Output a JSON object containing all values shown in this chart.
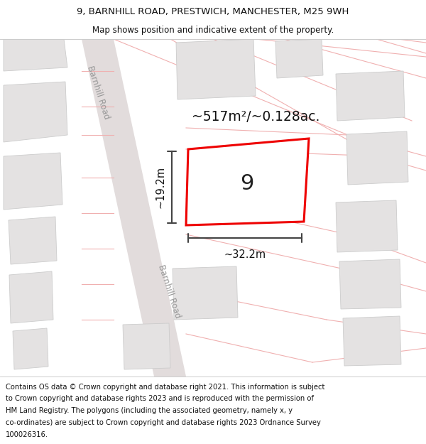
{
  "title_line1": "9, BARNHILL ROAD, PRESTWICH, MANCHESTER, M25 9WH",
  "title_line2": "Map shows position and indicative extent of the property.",
  "footer_lines": [
    "Contains OS data © Crown copyright and database right 2021. This information is subject",
    "to Crown copyright and database rights 2023 and is reproduced with the permission of",
    "HM Land Registry. The polygons (including the associated geometry, namely x, y",
    "co-ordinates) are subject to Crown copyright and database rights 2023 Ordnance Survey",
    "100026316."
  ],
  "area_label": "~517m²/~0.128ac.",
  "house_number": "9",
  "width_label": "~32.2m",
  "height_label": "~19.2m",
  "road_label": "Barnhill Road",
  "bg_color": "#ffffff",
  "map_bg": "#f8f6f6",
  "road_fill": "#e8e4e4",
  "building_fill": "#e4e2e2",
  "building_edge": "#cccccc",
  "prop_fill": "#ffffff",
  "prop_edge": "#ee0000",
  "dim_color": "#444444",
  "pink": "#f0b0b0",
  "text_dark": "#111111",
  "text_gray": "#999999",
  "title_fs": 9.5,
  "subtitle_fs": 8.5,
  "footer_fs": 7.2,
  "area_fs": 13.5,
  "num_fs": 22,
  "dim_fs": 10.5,
  "road_fs": 8.5
}
